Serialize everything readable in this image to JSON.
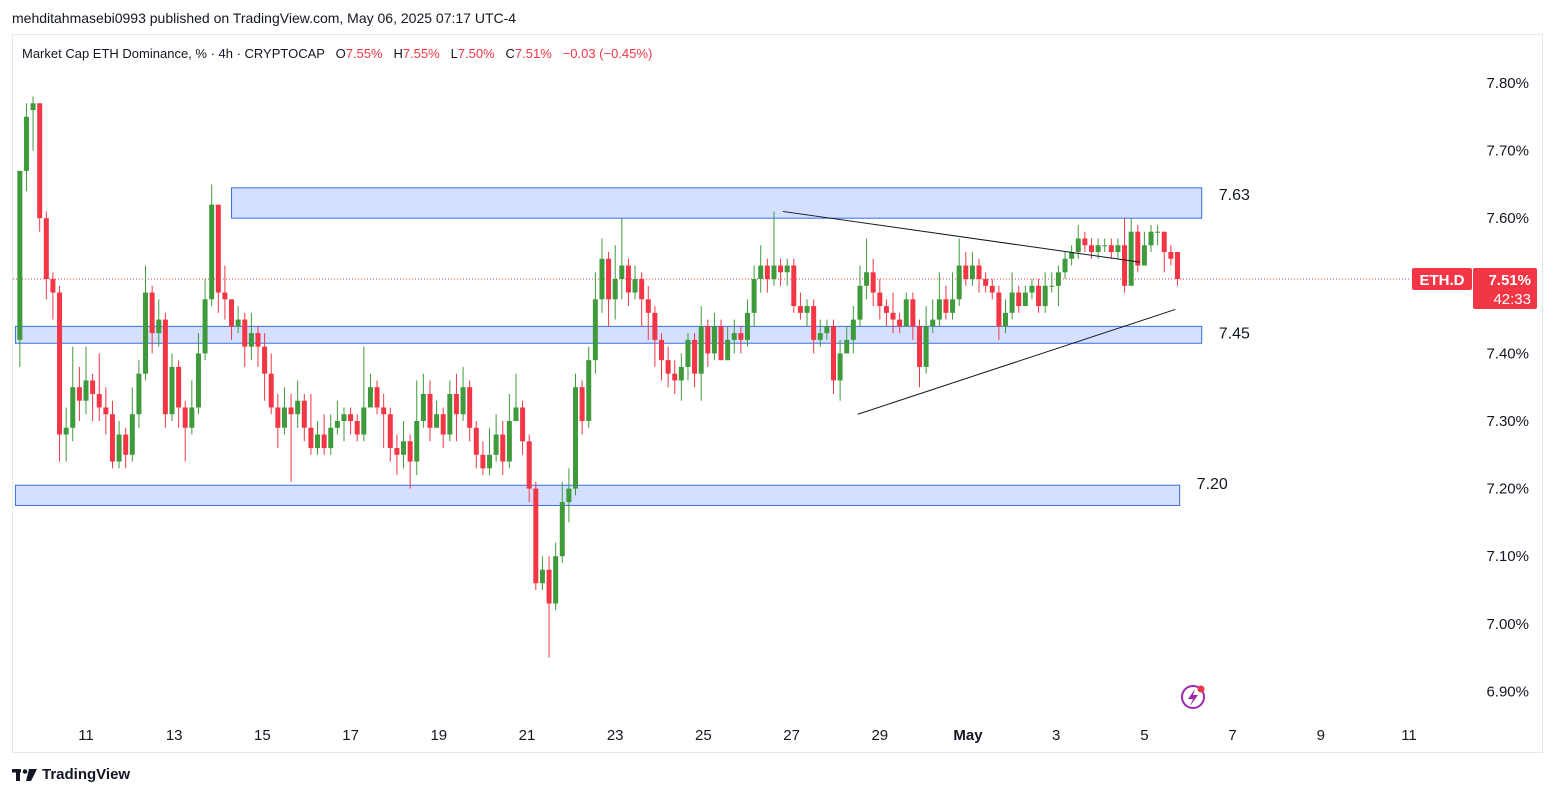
{
  "header": {
    "published_line": "mehditahmasebi0993 published on TradingView.com, May 06, 2025 07:17 UTC-4"
  },
  "legend": {
    "symbol_line": "Market Cap ETH Dominance, % · 4h · CRYPTOCAP",
    "open_label": "O",
    "open_value": "7.55%",
    "high_label": "H",
    "high_value": "7.55%",
    "low_label": "L",
    "low_value": "7.50%",
    "close_label": "C",
    "close_value": "7.51%",
    "change": "−0.03 (−0.45%)"
  },
  "price_tag": {
    "symbol": "ETH.D",
    "price": "7.51%",
    "countdown": "42:33"
  },
  "footer": {
    "brand": "TradingView"
  },
  "colors": {
    "up": "#3f9a3c",
    "down": "#f23645",
    "zone_fill": "#d5dfff",
    "zone_border": "#3a6fe0",
    "axis_text": "#131722",
    "price_line": "#f23645"
  },
  "chart_data": {
    "type": "candlestick",
    "y_axis": {
      "min": 6.85,
      "max": 7.85,
      "tick_labels": [
        "7.80%",
        "7.70%",
        "7.60%",
        "7.40%",
        "7.30%",
        "7.20%",
        "7.10%",
        "7.00%",
        "6.90%"
      ],
      "tick_values": [
        7.8,
        7.7,
        7.6,
        7.4,
        7.3,
        7.2,
        7.1,
        7.0,
        6.9
      ],
      "side": "right"
    },
    "x_axis": {
      "tick_labels": [
        "11",
        "13",
        "15",
        "17",
        "19",
        "21",
        "23",
        "25",
        "27",
        "29",
        "May",
        "3",
        "5",
        "7",
        "9",
        "11"
      ],
      "tick_days": [
        11,
        13,
        15,
        17,
        19,
        21,
        23,
        25,
        27,
        29,
        31,
        33,
        35,
        37,
        39,
        41
      ],
      "start_day": 9.4,
      "end_day": 42.5
    },
    "zones": [
      {
        "label": "7.63",
        "low": 7.6,
        "high": 7.645,
        "start_day": 14.3,
        "end_day": 36.3
      },
      {
        "label": "7.45",
        "low": 7.415,
        "high": 7.44,
        "start_day": 9.4,
        "end_day": 36.3
      },
      {
        "label": "7.20",
        "low": 7.175,
        "high": 7.205,
        "start_day": 9.4,
        "end_day": 35.8
      }
    ],
    "trendlines": [
      {
        "from": [
          26.8,
          7.61
        ],
        "to": [
          34.9,
          7.535
        ]
      },
      {
        "from": [
          28.5,
          7.31
        ],
        "to": [
          35.7,
          7.465
        ]
      }
    ],
    "last_price": 7.51,
    "candles": [
      [
        9.5,
        7.42,
        7.67,
        7.67,
        7.38
      ],
      [
        9.65,
        7.67,
        7.75,
        7.77,
        7.64
      ],
      [
        9.8,
        7.76,
        7.77,
        7.78,
        7.7
      ],
      [
        9.95,
        7.77,
        7.6,
        7.77,
        7.58
      ],
      [
        10.1,
        7.6,
        7.51,
        7.61,
        7.48
      ],
      [
        10.25,
        7.51,
        7.49,
        7.52,
        7.45
      ],
      [
        10.4,
        7.49,
        7.28,
        7.5,
        7.24
      ],
      [
        10.55,
        7.28,
        7.29,
        7.32,
        7.24
      ],
      [
        10.7,
        7.29,
        7.35,
        7.41,
        7.27
      ],
      [
        10.85,
        7.35,
        7.33,
        7.38,
        7.3
      ],
      [
        11.0,
        7.33,
        7.36,
        7.41,
        7.31
      ],
      [
        11.15,
        7.36,
        7.34,
        7.37,
        7.3
      ],
      [
        11.3,
        7.34,
        7.32,
        7.4,
        7.3
      ],
      [
        11.45,
        7.32,
        7.31,
        7.35,
        7.28
      ],
      [
        11.6,
        7.31,
        7.24,
        7.33,
        7.23
      ],
      [
        11.75,
        7.24,
        7.28,
        7.3,
        7.23
      ],
      [
        11.9,
        7.28,
        7.25,
        7.29,
        7.23
      ],
      [
        12.05,
        7.25,
        7.31,
        7.35,
        7.24
      ],
      [
        12.2,
        7.31,
        7.37,
        7.39,
        7.29
      ],
      [
        12.35,
        7.37,
        7.49,
        7.53,
        7.36
      ],
      [
        12.5,
        7.49,
        7.43,
        7.5,
        7.4
      ],
      [
        12.65,
        7.43,
        7.45,
        7.48,
        7.41
      ],
      [
        12.8,
        7.45,
        7.31,
        7.46,
        7.29
      ],
      [
        12.95,
        7.31,
        7.38,
        7.4,
        7.3
      ],
      [
        13.1,
        7.38,
        7.32,
        7.39,
        7.29
      ],
      [
        13.25,
        7.32,
        7.29,
        7.33,
        7.24
      ],
      [
        13.4,
        7.29,
        7.32,
        7.36,
        7.28
      ],
      [
        13.55,
        7.32,
        7.4,
        7.43,
        7.31
      ],
      [
        13.7,
        7.4,
        7.48,
        7.51,
        7.39
      ],
      [
        13.85,
        7.48,
        7.62,
        7.65,
        7.47
      ],
      [
        14.0,
        7.62,
        7.49,
        7.62,
        7.46
      ],
      [
        14.15,
        7.49,
        7.48,
        7.53,
        7.45
      ],
      [
        14.3,
        7.48,
        7.44,
        7.47,
        7.42
      ],
      [
        14.45,
        7.44,
        7.45,
        7.47,
        7.43
      ],
      [
        14.6,
        7.45,
        7.41,
        7.46,
        7.38
      ],
      [
        14.75,
        7.41,
        7.43,
        7.46,
        7.39
      ],
      [
        14.9,
        7.43,
        7.41,
        7.44,
        7.38
      ],
      [
        15.05,
        7.41,
        7.37,
        7.43,
        7.33
      ],
      [
        15.2,
        7.37,
        7.32,
        7.4,
        7.31
      ],
      [
        15.35,
        7.32,
        7.29,
        7.34,
        7.26
      ],
      [
        15.5,
        7.29,
        7.32,
        7.35,
        7.28
      ],
      [
        15.65,
        7.32,
        7.31,
        7.34,
        7.21
      ],
      [
        15.8,
        7.31,
        7.33,
        7.36,
        7.29
      ],
      [
        15.95,
        7.33,
        7.29,
        7.34,
        7.27
      ],
      [
        16.1,
        7.29,
        7.26,
        7.34,
        7.25
      ],
      [
        16.25,
        7.26,
        7.28,
        7.3,
        7.25
      ],
      [
        16.4,
        7.28,
        7.26,
        7.31,
        7.25
      ],
      [
        16.55,
        7.26,
        7.29,
        7.31,
        7.25
      ],
      [
        16.7,
        7.29,
        7.3,
        7.33,
        7.28
      ],
      [
        16.85,
        7.3,
        7.31,
        7.32,
        7.27
      ],
      [
        17.0,
        7.31,
        7.3,
        7.32,
        7.28
      ],
      [
        17.15,
        7.3,
        7.28,
        7.31,
        7.27
      ],
      [
        17.3,
        7.28,
        7.32,
        7.41,
        7.27
      ],
      [
        17.45,
        7.32,
        7.35,
        7.37,
        7.32
      ],
      [
        17.6,
        7.35,
        7.32,
        7.36,
        7.31
      ],
      [
        17.75,
        7.32,
        7.31,
        7.34,
        7.26
      ],
      [
        17.9,
        7.31,
        7.26,
        7.32,
        7.24
      ],
      [
        18.05,
        7.26,
        7.25,
        7.28,
        7.22
      ],
      [
        18.2,
        7.25,
        7.27,
        7.3,
        7.23
      ],
      [
        18.35,
        7.27,
        7.24,
        7.28,
        7.2
      ],
      [
        18.5,
        7.24,
        7.3,
        7.36,
        7.22
      ],
      [
        18.65,
        7.3,
        7.34,
        7.37,
        7.29
      ],
      [
        18.8,
        7.34,
        7.29,
        7.36,
        7.27
      ],
      [
        18.95,
        7.29,
        7.31,
        7.33,
        7.29
      ],
      [
        19.1,
        7.31,
        7.28,
        7.32,
        7.26
      ],
      [
        19.25,
        7.28,
        7.34,
        7.36,
        7.27
      ],
      [
        19.4,
        7.34,
        7.31,
        7.37,
        7.27
      ],
      [
        19.55,
        7.31,
        7.35,
        7.38,
        7.3
      ],
      [
        19.7,
        7.35,
        7.29,
        7.36,
        7.27
      ],
      [
        19.85,
        7.29,
        7.25,
        7.3,
        7.23
      ],
      [
        20.0,
        7.25,
        7.23,
        7.27,
        7.22
      ],
      [
        20.15,
        7.23,
        7.25,
        7.29,
        7.22
      ],
      [
        20.3,
        7.25,
        7.28,
        7.31,
        7.24
      ],
      [
        20.45,
        7.28,
        7.24,
        7.3,
        7.22
      ],
      [
        20.6,
        7.24,
        7.3,
        7.34,
        7.23
      ],
      [
        20.75,
        7.3,
        7.32,
        7.37,
        7.3
      ],
      [
        20.9,
        7.32,
        7.27,
        7.33,
        7.25
      ],
      [
        21.05,
        7.27,
        7.2,
        7.28,
        7.18
      ],
      [
        21.2,
        7.2,
        7.06,
        7.21,
        7.05
      ],
      [
        21.35,
        7.06,
        7.08,
        7.1,
        7.05
      ],
      [
        21.5,
        7.08,
        7.03,
        7.1,
        6.95
      ],
      [
        21.65,
        7.03,
        7.1,
        7.12,
        7.02
      ],
      [
        21.8,
        7.1,
        7.18,
        7.21,
        7.09
      ],
      [
        21.95,
        7.18,
        7.2,
        7.23,
        7.15
      ],
      [
        22.1,
        7.2,
        7.35,
        7.37,
        7.19
      ],
      [
        22.25,
        7.35,
        7.3,
        7.36,
        7.28
      ],
      [
        22.4,
        7.3,
        7.39,
        7.41,
        7.29
      ],
      [
        22.55,
        7.39,
        7.48,
        7.52,
        7.37
      ],
      [
        22.7,
        7.48,
        7.54,
        7.57,
        7.46
      ],
      [
        22.85,
        7.54,
        7.48,
        7.55,
        7.44
      ],
      [
        23.0,
        7.48,
        7.51,
        7.56,
        7.45
      ],
      [
        23.15,
        7.51,
        7.53,
        7.6,
        7.48
      ],
      [
        23.3,
        7.53,
        7.49,
        7.54,
        7.47
      ],
      [
        23.45,
        7.49,
        7.51,
        7.53,
        7.48
      ],
      [
        23.6,
        7.51,
        7.48,
        7.52,
        7.44
      ],
      [
        23.75,
        7.48,
        7.46,
        7.5,
        7.42
      ],
      [
        23.9,
        7.46,
        7.42,
        7.47,
        7.38
      ],
      [
        24.05,
        7.42,
        7.39,
        7.43,
        7.36
      ],
      [
        24.2,
        7.39,
        7.37,
        7.41,
        7.35
      ],
      [
        24.35,
        7.37,
        7.36,
        7.39,
        7.34
      ],
      [
        24.5,
        7.36,
        7.38,
        7.4,
        7.33
      ],
      [
        24.65,
        7.38,
        7.42,
        7.43,
        7.36
      ],
      [
        24.8,
        7.42,
        7.37,
        7.43,
        7.35
      ],
      [
        24.95,
        7.37,
        7.44,
        7.47,
        7.33
      ],
      [
        25.1,
        7.44,
        7.4,
        7.45,
        7.38
      ],
      [
        25.25,
        7.4,
        7.44,
        7.46,
        7.39
      ],
      [
        25.4,
        7.44,
        7.39,
        7.45,
        7.39
      ],
      [
        25.55,
        7.39,
        7.42,
        7.44,
        7.39
      ],
      [
        25.7,
        7.42,
        7.43,
        7.45,
        7.4
      ],
      [
        25.85,
        7.43,
        7.42,
        7.44,
        7.4
      ],
      [
        26.0,
        7.42,
        7.46,
        7.48,
        7.41
      ],
      [
        26.15,
        7.46,
        7.51,
        7.53,
        7.44
      ],
      [
        26.3,
        7.51,
        7.53,
        7.56,
        7.49
      ],
      [
        26.45,
        7.53,
        7.51,
        7.54,
        7.49
      ],
      [
        26.6,
        7.51,
        7.53,
        7.61,
        7.5
      ],
      [
        26.75,
        7.53,
        7.52,
        7.54,
        7.5
      ],
      [
        26.9,
        7.52,
        7.53,
        7.54,
        7.5
      ],
      [
        27.05,
        7.53,
        7.47,
        7.54,
        7.46
      ],
      [
        27.2,
        7.47,
        7.46,
        7.49,
        7.45
      ],
      [
        27.35,
        7.46,
        7.47,
        7.48,
        7.44
      ],
      [
        27.5,
        7.47,
        7.42,
        7.48,
        7.4
      ],
      [
        27.65,
        7.42,
        7.43,
        7.45,
        7.41
      ],
      [
        27.8,
        7.43,
        7.44,
        7.45,
        7.42
      ],
      [
        27.95,
        7.44,
        7.36,
        7.45,
        7.34
      ],
      [
        28.1,
        7.36,
        7.4,
        7.42,
        7.33
      ],
      [
        28.25,
        7.4,
        7.42,
        7.44,
        7.4
      ],
      [
        28.4,
        7.42,
        7.45,
        7.47,
        7.4
      ],
      [
        28.55,
        7.45,
        7.5,
        7.53,
        7.44
      ],
      [
        28.7,
        7.5,
        7.52,
        7.57,
        7.48
      ],
      [
        28.85,
        7.52,
        7.49,
        7.54,
        7.47
      ],
      [
        29.0,
        7.49,
        7.47,
        7.51,
        7.45
      ],
      [
        29.15,
        7.47,
        7.46,
        7.48,
        7.44
      ],
      [
        29.3,
        7.46,
        7.45,
        7.49,
        7.43
      ],
      [
        29.45,
        7.45,
        7.44,
        7.46,
        7.43
      ],
      [
        29.6,
        7.44,
        7.48,
        7.49,
        7.44
      ],
      [
        29.75,
        7.48,
        7.44,
        7.49,
        7.42
      ],
      [
        29.9,
        7.44,
        7.38,
        7.45,
        7.35
      ],
      [
        30.05,
        7.38,
        7.44,
        7.47,
        7.37
      ],
      [
        30.2,
        7.44,
        7.45,
        7.48,
        7.43
      ],
      [
        30.35,
        7.45,
        7.48,
        7.52,
        7.44
      ],
      [
        30.5,
        7.48,
        7.46,
        7.5,
        7.45
      ],
      [
        30.65,
        7.46,
        7.48,
        7.52,
        7.45
      ],
      [
        30.8,
        7.48,
        7.53,
        7.57,
        7.47
      ],
      [
        30.95,
        7.53,
        7.51,
        7.55,
        7.5
      ],
      [
        31.1,
        7.51,
        7.53,
        7.55,
        7.5
      ],
      [
        31.25,
        7.53,
        7.51,
        7.54,
        7.49
      ],
      [
        31.4,
        7.51,
        7.5,
        7.52,
        7.49
      ],
      [
        31.55,
        7.5,
        7.49,
        7.51,
        7.48
      ],
      [
        31.7,
        7.49,
        7.44,
        7.5,
        7.42
      ],
      [
        31.85,
        7.44,
        7.46,
        7.48,
        7.43
      ],
      [
        32.0,
        7.46,
        7.49,
        7.52,
        7.45
      ],
      [
        32.15,
        7.49,
        7.47,
        7.5,
        7.46
      ],
      [
        32.3,
        7.47,
        7.49,
        7.5,
        7.47
      ],
      [
        32.45,
        7.49,
        7.5,
        7.51,
        7.48
      ],
      [
        32.6,
        7.5,
        7.47,
        7.51,
        7.46
      ],
      [
        32.75,
        7.47,
        7.5,
        7.52,
        7.46
      ],
      [
        32.9,
        7.5,
        7.5,
        7.52,
        7.49
      ],
      [
        33.05,
        7.5,
        7.52,
        7.53,
        7.47
      ],
      [
        33.2,
        7.52,
        7.54,
        7.55,
        7.51
      ],
      [
        33.35,
        7.54,
        7.55,
        7.56,
        7.53
      ],
      [
        33.5,
        7.55,
        7.57,
        7.59,
        7.54
      ],
      [
        33.65,
        7.57,
        7.56,
        7.58,
        7.55
      ],
      [
        33.8,
        7.56,
        7.55,
        7.57,
        7.54
      ],
      [
        33.95,
        7.55,
        7.56,
        7.57,
        7.54
      ],
      [
        34.1,
        7.56,
        7.56,
        7.57,
        7.55
      ],
      [
        34.25,
        7.56,
        7.55,
        7.57,
        7.54
      ],
      [
        34.4,
        7.55,
        7.56,
        7.57,
        7.54
      ],
      [
        34.55,
        7.56,
        7.5,
        7.6,
        7.49
      ],
      [
        34.7,
        7.5,
        7.58,
        7.6,
        7.5
      ],
      [
        34.85,
        7.58,
        7.53,
        7.59,
        7.52
      ],
      [
        35.0,
        7.53,
        7.56,
        7.58,
        7.53
      ],
      [
        35.15,
        7.56,
        7.58,
        7.59,
        7.55
      ],
      [
        35.3,
        7.58,
        7.58,
        7.59,
        7.56
      ],
      [
        35.45,
        7.58,
        7.55,
        7.58,
        7.52
      ],
      [
        35.6,
        7.55,
        7.54,
        7.56,
        7.53
      ],
      [
        35.75,
        7.55,
        7.51,
        7.55,
        7.5
      ]
    ]
  }
}
